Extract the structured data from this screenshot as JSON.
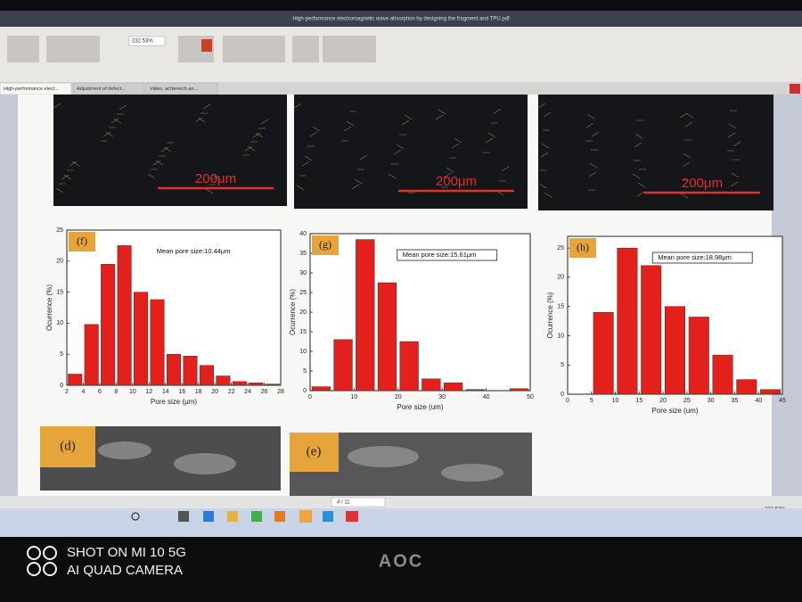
{
  "window": {
    "title": "High-performance electromagnetic wave absorption by designing the fragment and TPU.pdf"
  },
  "toolbar": {
    "zoom": "232.53%"
  },
  "tabs": [
    "High-performance elect...",
    "Adjustment of defect...",
    "Video, achievech an..."
  ],
  "document": {
    "scale_bars": [
      "200μm",
      "200μm",
      "200μm"
    ],
    "panels": [
      "(d)",
      "(e)"
    ]
  },
  "chart_data": [
    {
      "type": "histogram",
      "label": "(f)",
      "annotation": "Mean pore size:10.44μm",
      "annotation_boxed": false,
      "x_label": "Pore size (μm)",
      "y_label": "Ocurrence (%)",
      "color": "#e3201b",
      "bins": [
        2,
        4,
        6,
        8,
        10,
        12,
        14,
        16,
        18,
        20,
        22,
        24,
        26,
        28
      ],
      "values": [
        1.8,
        9.8,
        19.5,
        22.5,
        15,
        13.8,
        5,
        4.7,
        3.2,
        1.5,
        0.6,
        0.4,
        0.2
      ],
      "xlim": [
        2,
        28
      ],
      "xticks": [
        2,
        4,
        6,
        8,
        10,
        12,
        14,
        16,
        18,
        20,
        22,
        24,
        26,
        28
      ],
      "ylim": [
        0,
        25
      ],
      "yticks": [
        0,
        5,
        10,
        15,
        20,
        25
      ]
    },
    {
      "type": "histogram",
      "label": "(g)",
      "annotation": "Mean pore size:15.61μm",
      "annotation_boxed": true,
      "x_label": "Pore size (um)",
      "y_label": "Ocurrence (%)",
      "color": "#e3201b",
      "bins": [
        0,
        5,
        10,
        15,
        20,
        25,
        30,
        35,
        40,
        45,
        50
      ],
      "values": [
        1,
        13,
        38.5,
        27.5,
        12.5,
        3,
        2,
        0.3,
        0,
        0.5
      ],
      "xlim": [
        0,
        50
      ],
      "xticks": [
        0,
        10,
        20,
        30,
        40,
        50
      ],
      "ylim": [
        0,
        40
      ],
      "yticks": [
        0,
        5,
        10,
        15,
        20,
        25,
        30,
        35,
        40
      ]
    },
    {
      "type": "histogram",
      "label": "(h)",
      "annotation": "Mean pore size:18.98μm",
      "annotation_boxed": true,
      "x_label": "Pore size (um)",
      "y_label": "Ocurrence (%)",
      "color": "#e3201b",
      "bins": [
        5,
        10,
        15,
        20,
        25,
        30,
        35,
        40,
        45
      ],
      "values": [
        14,
        25,
        22,
        15,
        13.2,
        6.7,
        2.5,
        0.8
      ],
      "xlim": [
        0,
        45
      ],
      "xticks": [
        0,
        5,
        10,
        15,
        20,
        25,
        30,
        35,
        40,
        45
      ],
      "ylim": [
        0,
        27
      ],
      "yticks": [
        0,
        5,
        10,
        15,
        20,
        25
      ]
    }
  ],
  "status": {
    "page": "4 / 11",
    "zoom": "232.53%"
  },
  "photo": {
    "watermark": [
      "SHOT ON MI 10 5G",
      "AI QUAD CAMERA"
    ],
    "monitor_brand": "AOC"
  }
}
